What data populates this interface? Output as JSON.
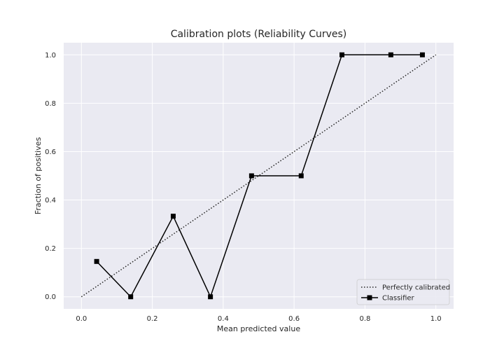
{
  "chart_data": {
    "type": "line",
    "title": "Calibration plots (Reliability Curves)",
    "xlabel": "Mean predicted value",
    "ylabel": "Fraction of positives",
    "xlim": [
      -0.05,
      1.05
    ],
    "ylim": [
      -0.05,
      1.05
    ],
    "xticks": [
      "0.0",
      "0.2",
      "0.4",
      "0.6",
      "0.8",
      "1.0"
    ],
    "yticks": [
      "0.0",
      "0.2",
      "0.4",
      "0.6",
      "0.8",
      "1.0"
    ],
    "grid": true,
    "legend_position": "lower-right",
    "series": [
      {
        "name": "Perfectly calibrated",
        "style": "dotted",
        "color": "#262626",
        "x": [
          0.0,
          1.0
        ],
        "y": [
          0.0,
          1.0
        ]
      },
      {
        "name": "Classifier",
        "style": "solid-square-markers",
        "color": "#000000",
        "x": [
          0.043,
          0.139,
          0.259,
          0.364,
          0.48,
          0.62,
          0.735,
          0.873,
          0.962
        ],
        "y": [
          0.146,
          0.0,
          0.333,
          0.0,
          0.5,
          0.5,
          1.0,
          1.0,
          1.0
        ]
      }
    ],
    "colors": {
      "plot_background": "#eaeaf2",
      "grid": "#ffffff"
    }
  }
}
